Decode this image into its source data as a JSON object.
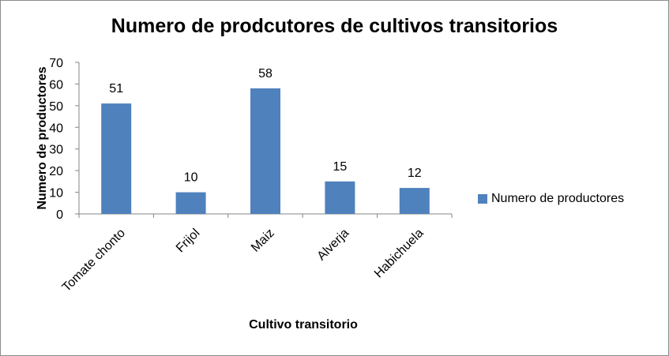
{
  "chart_data": {
    "type": "bar",
    "title": "Numero de prodcutores de cultivos transitorios",
    "xlabel": "Cultivo transitorio",
    "ylabel": "Numero de productores",
    "categories": [
      "Tomate chonto",
      "Frijol",
      "Maiz",
      "Alverja",
      "Habichuela"
    ],
    "series": [
      {
        "name": "Numero de productores",
        "values": [
          51,
          10,
          58,
          15,
          12
        ],
        "color": "#4f81bd"
      }
    ],
    "ylim": [
      0,
      70
    ],
    "yticks": [
      0,
      10,
      20,
      30,
      40,
      50,
      60,
      70
    ],
    "grid": false,
    "legend_position": "right",
    "data_labels": true
  }
}
